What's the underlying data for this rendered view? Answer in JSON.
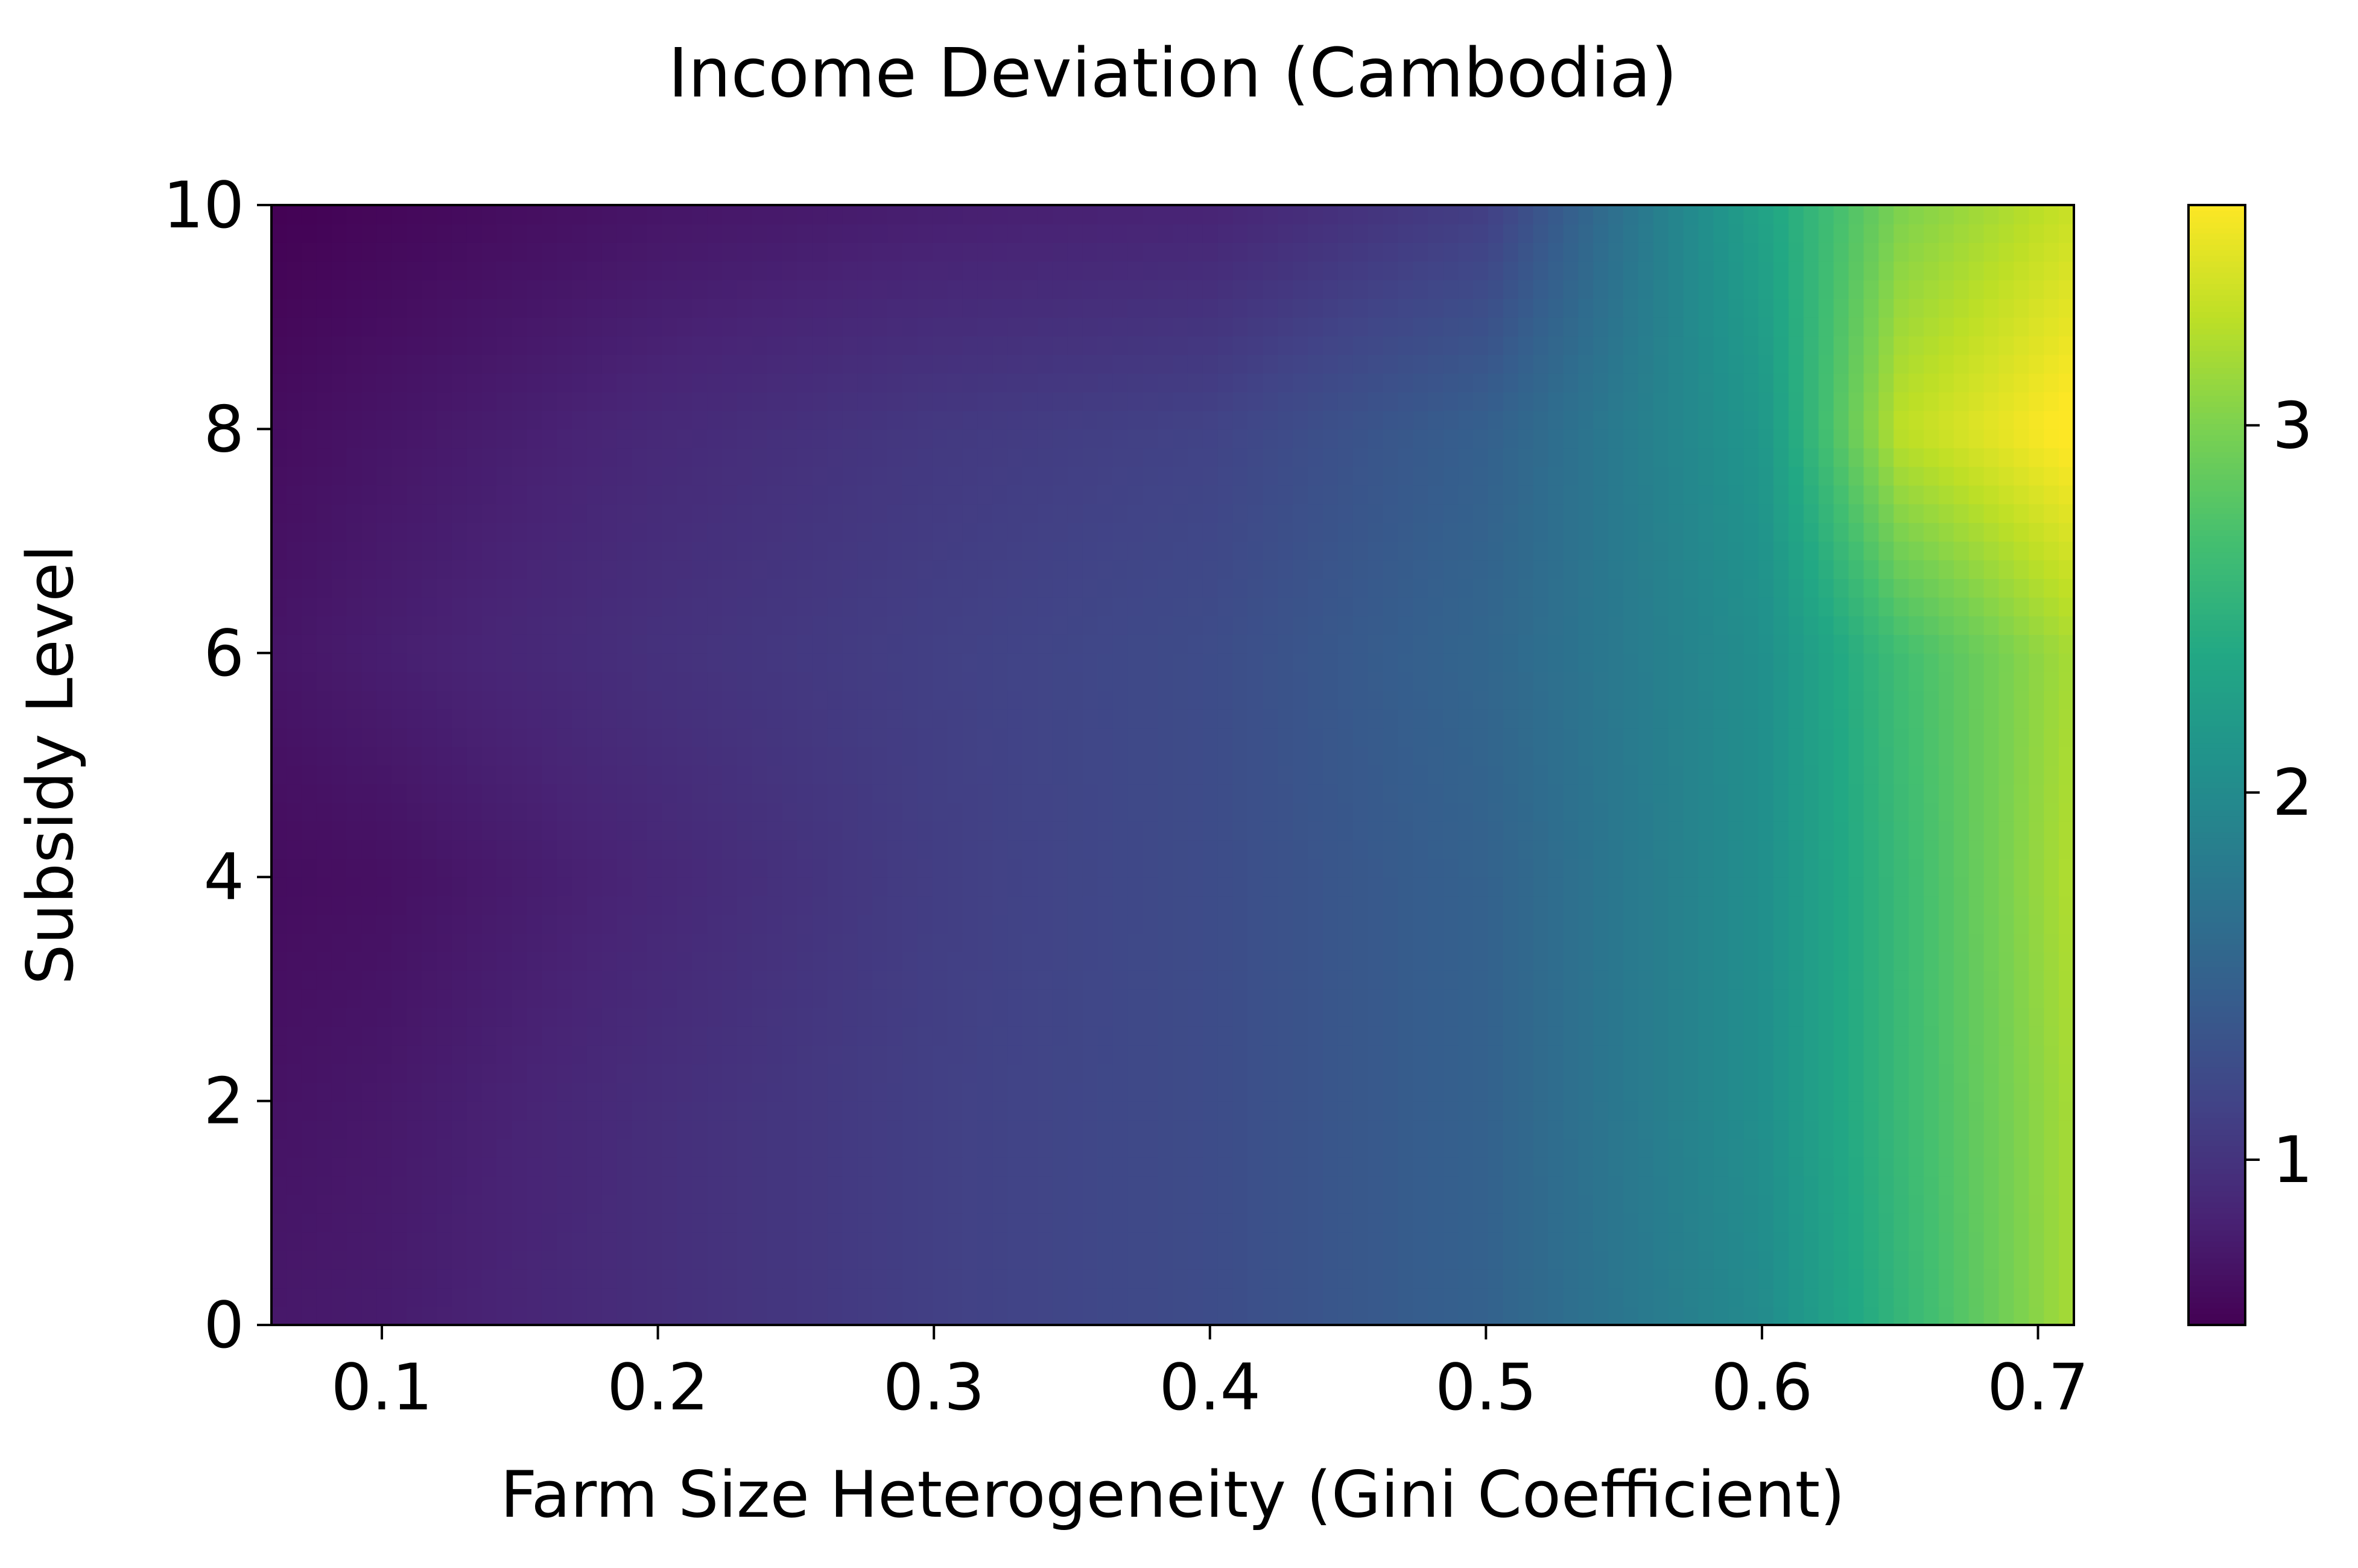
{
  "chart_data": {
    "type": "heatmap",
    "title": "Income Deviation (Cambodia)",
    "xlabel": "Farm Size Heterogeneity (Gini Coefficient)",
    "ylabel": "Subsidy Level",
    "xlim": [
      0.06,
      0.713
    ],
    "ylim": [
      0,
      10
    ],
    "x_ticks": [
      "0.1",
      "0.2",
      "0.3",
      "0.4",
      "0.5",
      "0.6",
      "0.7"
    ],
    "y_ticks": [
      "0",
      "2",
      "4",
      "6",
      "8",
      "10"
    ],
    "colorbar": {
      "colormap": "viridis",
      "range": [
        0.55,
        3.6
      ],
      "ticks": [
        "1",
        "2",
        "3"
      ]
    },
    "grid": false,
    "x": [
      0.06,
      0.1,
      0.2,
      0.3,
      0.4,
      0.5,
      0.6,
      0.65,
      0.713
    ],
    "y": [
      0,
      2,
      4,
      6,
      8,
      10
    ],
    "z": [
      [
        0.75,
        0.78,
        0.95,
        1.12,
        1.25,
        1.5,
        2.0,
        2.55,
        3.2
      ],
      [
        0.7,
        0.75,
        0.95,
        1.12,
        1.25,
        1.5,
        2.05,
        2.6,
        3.2
      ],
      [
        0.65,
        0.68,
        0.88,
        1.1,
        1.25,
        1.5,
        2.05,
        2.6,
        3.25
      ],
      [
        0.72,
        0.8,
        0.98,
        1.12,
        1.25,
        1.55,
        2.05,
        2.65,
        3.2
      ],
      [
        0.65,
        0.72,
        0.9,
        1.05,
        1.15,
        1.48,
        2.15,
        3.3,
        3.65
      ],
      [
        0.55,
        0.6,
        0.72,
        0.8,
        0.85,
        1.1,
        2.3,
        3.0,
        3.35
      ]
    ]
  }
}
